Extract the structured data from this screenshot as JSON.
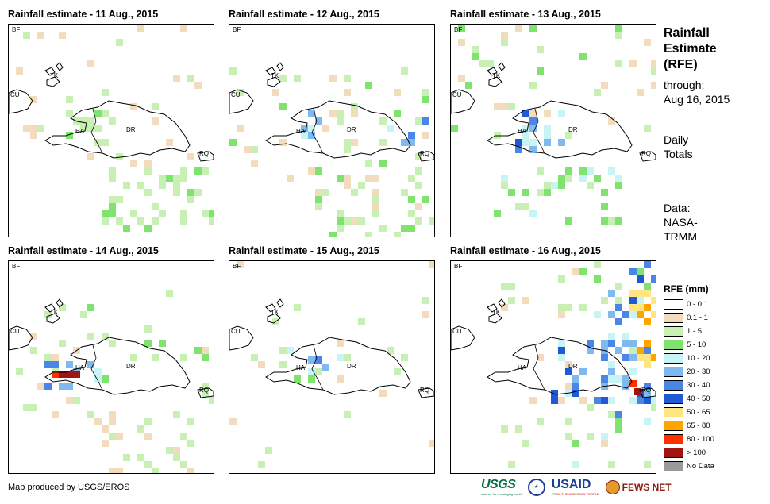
{
  "panels": [
    {
      "title": "Rainfall estimate - 11 Aug., 2015",
      "labels": {
        "bf": "BF",
        "cu": "CU",
        "tk": "TK",
        "ha": "HA",
        "dr": "DR",
        "rq": "RQ"
      }
    },
    {
      "title": "Rainfall estimate - 12 Aug., 2015",
      "labels": {
        "bf": "BF",
        "cu": "CU",
        "tk": "TK",
        "ha": "HA",
        "dr": "DR",
        "rq": "RQ"
      }
    },
    {
      "title": "Rainfall estimate - 13 Aug., 2015",
      "labels": {
        "bf": "BF",
        "cu": "CU",
        "tk": "TK",
        "ha": "HA",
        "dr": "DR",
        "rq": "RQ"
      }
    },
    {
      "title": "Rainfall estimate - 14 Aug., 2015",
      "labels": {
        "bf": "BF",
        "cu": "CU",
        "tk": "TK",
        "ha": "HA",
        "dr": "DR",
        "rq": "RQ"
      }
    },
    {
      "title": "Rainfall estimate - 15 Aug., 2015",
      "labels": {
        "bf": "BF",
        "cu": "CU",
        "tk": "TK",
        "ha": "HA",
        "dr": "DR",
        "rq": "RQ"
      }
    },
    {
      "title": "Rainfall estimate - 16 Aug., 2015",
      "labels": {
        "bf": "BF",
        "cu": "CU",
        "tk": "TK",
        "ha": "HA",
        "dr": "DR",
        "rq": "RQ"
      }
    }
  ],
  "sidebar": {
    "title_line1": "Rainfall",
    "title_line2": "Estimate",
    "title_line3": "(RFE)",
    "through_label": "through:",
    "through_date": "Aug 16, 2015",
    "totals_line1": "Daily",
    "totals_line2": "Totals",
    "data_line1": "Data:",
    "data_line2": "NASA-",
    "data_line3": "TRMM"
  },
  "legend": {
    "title": "RFE (mm)",
    "items": [
      {
        "label": "0 - 0.1",
        "color": "#ffffff"
      },
      {
        "label": "0.1 - 1",
        "color": "#f3dcbd"
      },
      {
        "label": "1 - 5",
        "color": "#c8f0b4"
      },
      {
        "label": "5 - 10",
        "color": "#7fe36e"
      },
      {
        "label": "10 - 20",
        "color": "#c8f4f6"
      },
      {
        "label": "20 - 30",
        "color": "#80b8f0"
      },
      {
        "label": "30 - 40",
        "color": "#4a86e6"
      },
      {
        "label": "40 - 50",
        "color": "#1f5ad4"
      },
      {
        "label": "50 - 65",
        "color": "#ffe682"
      },
      {
        "label": "65 - 80",
        "color": "#ffa500"
      },
      {
        "label": "80 - 100",
        "color": "#ff3000"
      },
      {
        "label": "> 100",
        "color": "#a01414"
      },
      {
        "label": "No Data",
        "color": "#9a9a9a"
      }
    ]
  },
  "credit": "Map produced by USGS/EROS",
  "logos": {
    "usgs": "USGS",
    "usgs_tagline": "science for a changing world",
    "usaid": "USAID",
    "usaid_tagline": "FROM THE AMERICAN PEOPLE",
    "fews": "FEWS NET"
  }
}
